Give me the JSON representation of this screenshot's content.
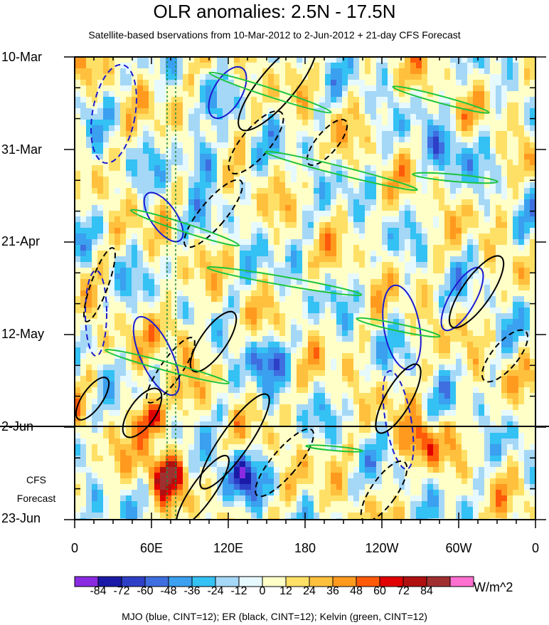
{
  "chart_data": {
    "type": "heatmap",
    "title": "OLR anomalies: 2.5N - 17.5N",
    "subtitle": "Satellite-based bservations from 10-Mar-2012 to 2-Jun-2012 + 21-day CFS Forecast",
    "x_tick_labels": [
      "0",
      "60E",
      "120E",
      "180",
      "120W",
      "60W",
      "0"
    ],
    "y_tick_labels": [
      "10-Mar",
      "31-Mar",
      "21-Apr",
      "12-May",
      "2-Jun",
      "23-Jun"
    ],
    "forecast_start": "2-Jun",
    "forecast_label": [
      "CFS",
      "Forecast"
    ],
    "colorbar": {
      "levels": [
        "-84",
        "-72",
        "-60",
        "-48",
        "-36",
        "-24",
        "-12",
        "0",
        "12",
        "24",
        "36",
        "48",
        "60",
        "72",
        "84"
      ],
      "colors": [
        "#8a2be2",
        "#1a1aa6",
        "#2e3fc7",
        "#3f6ee0",
        "#3aa0ef",
        "#34c1f4",
        "#a5d8f7",
        "#e5f9ff",
        "#ffffc8",
        "#ffe066",
        "#ffc03d",
        "#ff9a1f",
        "#ff5a0a",
        "#e00000",
        "#b01010",
        "#a03030",
        "#ff6fd0"
      ],
      "units": "W/m^2"
    },
    "footnote": "MJO (blue, CINT=12); ER (black, CINT=12); Kelvin (green, CINT=12)"
  }
}
